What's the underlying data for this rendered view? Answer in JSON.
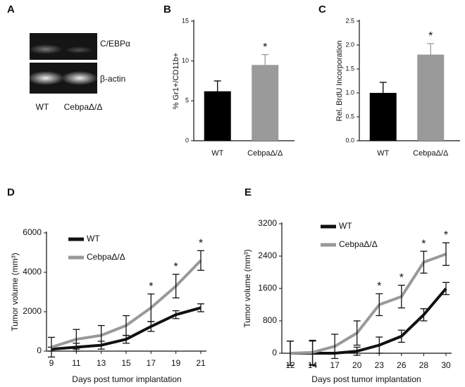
{
  "gel": {
    "panel": "A",
    "bands": [
      "C/EBPα",
      "β-actin"
    ],
    "lanes": [
      "WT",
      "CebpaΔ/Δ"
    ]
  },
  "chart_data": [
    {
      "panel": "B",
      "type": "bar",
      "y_label": "% Gr1+/CD11b+",
      "categories": [
        "WT",
        "CebpaΔ/Δ"
      ],
      "values": [
        6.2,
        9.5
      ],
      "errors": [
        1.3,
        1.3
      ],
      "colors": [
        "#000000",
        "#9a9a9a"
      ],
      "ylim": [
        0,
        15
      ],
      "yticks": [
        0,
        5,
        10,
        15
      ],
      "annotations": [
        {
          "x": "CebpaΔ/Δ",
          "label": "*"
        }
      ]
    },
    {
      "panel": "C",
      "type": "bar",
      "y_label": "Rel. BrdU Incorporation",
      "categories": [
        "WT",
        "CebpaΔ/Δ"
      ],
      "values": [
        1.0,
        1.8
      ],
      "errors": [
        0.22,
        0.23
      ],
      "colors": [
        "#000000",
        "#9a9a9a"
      ],
      "ylim": [
        0,
        2.5
      ],
      "yticks": [
        {
          "value": 0,
          "label": "0.0"
        },
        {
          "value": 0.5,
          "label": "0.5"
        },
        {
          "value": 1,
          "label": "1.0"
        },
        {
          "value": 1.5,
          "label": "1.5"
        },
        {
          "value": 2,
          "label": "2.0"
        },
        {
          "value": 2.5,
          "label": "2.5"
        }
      ],
      "annotations": [
        {
          "x": "CebpaΔ/Δ",
          "label": "*"
        }
      ]
    },
    {
      "panel": "D",
      "type": "line",
      "y_label": "Tumor volume (mm³)",
      "x_label": "Days post tumor implantation",
      "x": [
        9,
        11,
        13,
        15,
        17,
        19,
        21
      ],
      "xlim": [
        9,
        21
      ],
      "xticks": [
        9,
        11,
        13,
        15,
        17,
        19,
        21
      ],
      "ylim": [
        0,
        6000
      ],
      "yticks": [
        0,
        2000,
        4000,
        6000
      ],
      "series": [
        {
          "name": "WT",
          "color": "#111111",
          "values": [
            100,
            200,
            300,
            600,
            1250,
            1850,
            2200
          ],
          "errors": [
            100,
            200,
            200,
            200,
            250,
            200,
            200
          ]
        },
        {
          "name": "CebpaΔ/Δ",
          "color": "#999999",
          "values": [
            200,
            600,
            800,
            1300,
            2200,
            3300,
            4600
          ],
          "errors": [
            500,
            500,
            500,
            500,
            700,
            600,
            500
          ]
        }
      ],
      "annotations": [
        {
          "x": 17,
          "label": "*"
        },
        {
          "x": 19,
          "label": "*"
        },
        {
          "x": 21,
          "label": "*"
        }
      ]
    },
    {
      "panel": "E",
      "type": "line",
      "y_label": "Tumor volume (mm³)",
      "x_label": "Days post tumor implantation",
      "categories": [
        "12",
        "14",
        "17",
        "20",
        "23",
        "26",
        "28",
        "30"
      ],
      "ylim": [
        0,
        3200
      ],
      "yticks": [
        0,
        800,
        1600,
        2400,
        3200
      ],
      "series": [
        {
          "name": "WT",
          "color": "#111111",
          "values": [
            0,
            0,
            0,
            50,
            200,
            420,
            950,
            1600
          ],
          "errors": [
            300,
            300,
            0,
            100,
            200,
            150,
            150,
            150
          ]
        },
        {
          "name": "CebpaΔ/Δ",
          "color": "#999999",
          "values": [
            0,
            20,
            170,
            500,
            1200,
            1400,
            2250,
            2450
          ],
          "errors": [
            300,
            300,
            300,
            300,
            270,
            280,
            270,
            280
          ]
        }
      ],
      "annotations": [
        {
          "x": "23",
          "label": "*"
        },
        {
          "x": "26",
          "label": "*"
        },
        {
          "x": "28",
          "label": "*"
        },
        {
          "x": "30",
          "label": "*"
        }
      ]
    }
  ]
}
